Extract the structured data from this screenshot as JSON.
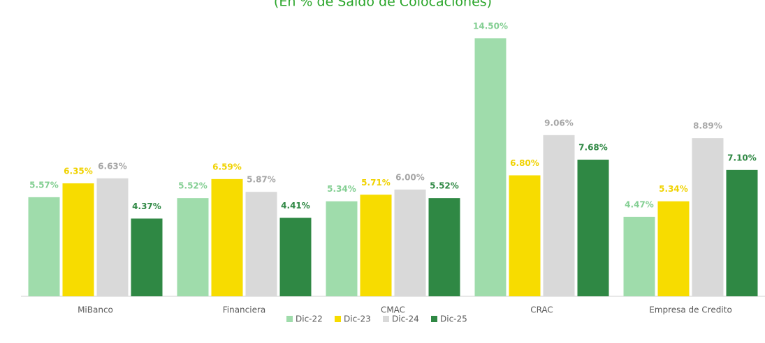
{
  "chart_data": {
    "type": "bar",
    "subtitle": "(En % de Saldo de Colocaciones)",
    "categories": [
      "MiBanco",
      "Financiera",
      "CMAC",
      "CRAC",
      "Empresa de Credito"
    ],
    "series": [
      {
        "name": "Dic-22",
        "color": "#9fdcab",
        "label_color": "#84cf93",
        "values": [
          5.57,
          5.52,
          5.34,
          14.5,
          4.47
        ],
        "value_labels": [
          "5.57%",
          "5.52%",
          "5.34%",
          "14.50%",
          "4.47%"
        ]
      },
      {
        "name": "Dic-23",
        "color": "#f7dc00",
        "label_color": "#f0d200",
        "values": [
          6.35,
          6.59,
          5.71,
          6.8,
          5.34
        ],
        "value_labels": [
          "6.35%",
          "6.59%",
          "5.71%",
          "6.80%",
          "5.34%"
        ]
      },
      {
        "name": "Dic-24",
        "color": "#d9d9d9",
        "label_color": "#a6a6a6",
        "values": [
          6.63,
          5.87,
          6.0,
          9.06,
          8.89
        ],
        "value_labels": [
          "6.63%",
          "5.87%",
          "6.00%",
          "9.06%",
          "8.89%"
        ]
      },
      {
        "name": "Dic-25",
        "color": "#2f8844",
        "label_color": "#2f8844",
        "values": [
          4.37,
          4.41,
          5.52,
          7.68,
          7.1
        ],
        "value_labels": [
          "4.37%",
          "4.41%",
          "5.52%",
          "7.68%",
          "7.10%"
        ]
      }
    ],
    "legend": "bottom"
  }
}
